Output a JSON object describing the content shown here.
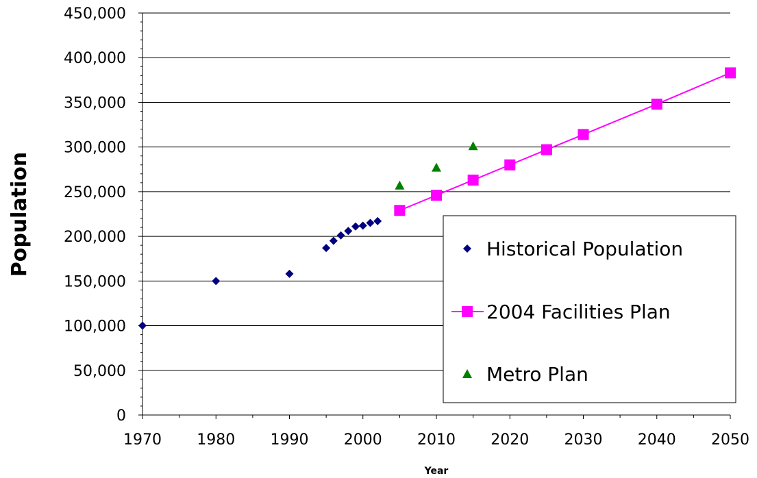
{
  "chart_data": {
    "type": "scatter",
    "xlabel": "Year",
    "ylabel": "Population",
    "xlim": [
      1970,
      2050
    ],
    "ylim": [
      0,
      450000
    ],
    "x_ticks": [
      1970,
      1980,
      1990,
      2000,
      2010,
      2020,
      2030,
      2040,
      2050
    ],
    "x_tick_labels": [
      "1970",
      "1980",
      "1990",
      "2000",
      "2010",
      "2020",
      "2030",
      "2040",
      "2050"
    ],
    "y_ticks": [
      0,
      50000,
      100000,
      150000,
      200000,
      250000,
      300000,
      350000,
      400000,
      450000
    ],
    "y_tick_labels": [
      "0",
      "50,000",
      "100,000",
      "150,000",
      "200,000",
      "250,000",
      "300,000",
      "350,000",
      "400,000",
      "450,000"
    ],
    "grid": "horizontal",
    "legend_position": "bottom-right",
    "series": [
      {
        "name": "Historical Population",
        "marker": "diamond",
        "line": false,
        "color": "#000080",
        "x": [
          1970,
          1980,
          1990,
          1995,
          1996,
          1997,
          1998,
          1999,
          2000,
          2001,
          2002
        ],
        "y": [
          100000,
          150000,
          158000,
          187000,
          195000,
          201000,
          206000,
          211000,
          212000,
          215000,
          217000
        ]
      },
      {
        "name": "2004 Facilities Plan",
        "marker": "square",
        "line": true,
        "color": "#ff00ff",
        "x": [
          2005,
          2010,
          2015,
          2020,
          2025,
          2030,
          2040,
          2050
        ],
        "y": [
          229000,
          246000,
          263000,
          280000,
          297000,
          314000,
          348000,
          383000
        ]
      },
      {
        "name": "Metro Plan",
        "marker": "triangle",
        "line": false,
        "color": "#008000",
        "x": [
          2005,
          2010,
          2015
        ],
        "y": [
          257000,
          277000,
          301000
        ]
      }
    ]
  }
}
